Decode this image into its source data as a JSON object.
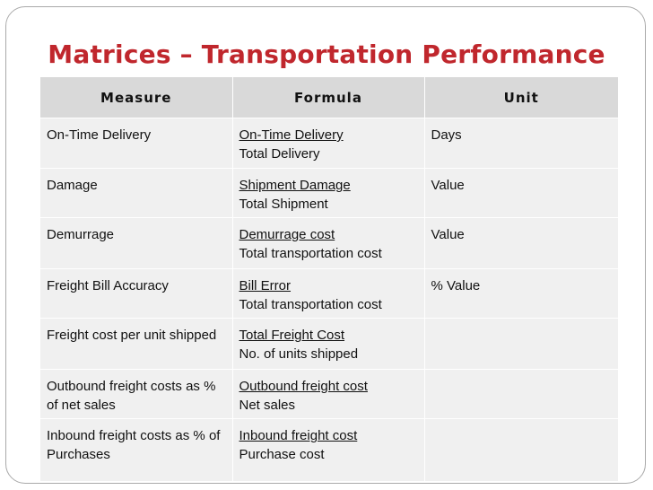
{
  "slide": {
    "title": "Matrices – Transportation Performance"
  },
  "table": {
    "headers": [
      "Measure",
      "Formula",
      "Unit"
    ],
    "rows": [
      {
        "measure": "On-Time Delivery",
        "formula_numerator": "On-Time Delivery",
        "formula_denominator": "Total Delivery",
        "unit": "Days"
      },
      {
        "measure": "Damage",
        "formula_numerator": "Shipment Damage ",
        "formula_denominator": "Total Shipment",
        "unit": "Value"
      },
      {
        "measure": "Demurrage",
        "formula_numerator": "Demurrage cost",
        "formula_denominator": "Total transportation cost",
        "unit": "Value"
      },
      {
        "measure": "Freight Bill Accuracy",
        "formula_numerator": "Bill Error",
        "formula_denominator": "Total transportation cost",
        "unit": "% Value"
      },
      {
        "measure": "Freight cost per unit shipped",
        "formula_numerator": "Total Freight Cost",
        "formula_denominator": "No. of units shipped",
        "unit": ""
      },
      {
        "measure": "Outbound freight costs as % of net sales",
        "formula_numerator": "Outbound freight cost",
        "formula_denominator": "Net sales",
        "unit": ""
      },
      {
        "measure": "Inbound freight costs as % of Purchases",
        "formula_numerator": "Inbound freight cost",
        "formula_denominator": "Purchase cost",
        "unit": ""
      }
    ]
  }
}
